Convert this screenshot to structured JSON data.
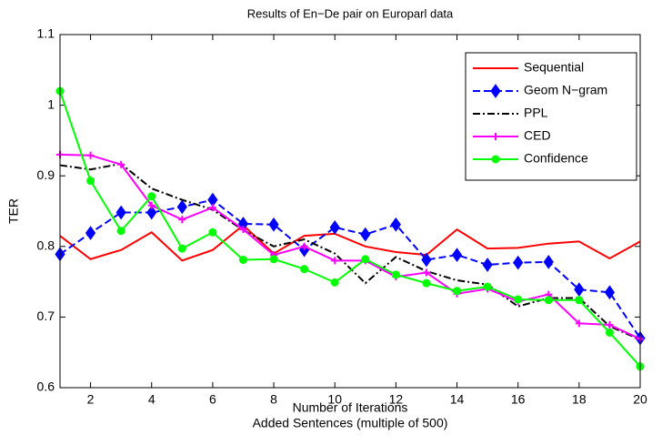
{
  "chart_data": {
    "type": "line",
    "title": "Results of En−De pair on Europarl data",
    "xlabel": [
      "Number of Iterations",
      "Added Sentences (multiple of 500)"
    ],
    "ylabel": "TER",
    "x": [
      1,
      2,
      3,
      4,
      5,
      6,
      7,
      8,
      9,
      10,
      11,
      12,
      13,
      14,
      15,
      16,
      17,
      18,
      19,
      20
    ],
    "xlim": [
      1,
      20
    ],
    "xticks": [
      2,
      4,
      6,
      8,
      10,
      12,
      14,
      16,
      18,
      20
    ],
    "ylim": [
      0.6,
      1.1
    ],
    "yticks": [
      0.6,
      0.7,
      0.8,
      0.9,
      1,
      1.1
    ],
    "grid": false,
    "legend": "northeast",
    "series": [
      {
        "name": "Sequential",
        "color": "#ff0000",
        "line_style": "solid",
        "marker": "none",
        "values": [
          0.815,
          0.782,
          0.795,
          0.82,
          0.78,
          0.795,
          0.83,
          0.79,
          0.815,
          0.818,
          0.8,
          0.792,
          0.788,
          0.824,
          0.797,
          0.798,
          0.804,
          0.807,
          0.783,
          0.807
        ]
      },
      {
        "name": "Geom N−gram",
        "color": "#0000ff",
        "line_style": "dashed",
        "marker": "diamond",
        "values": [
          0.789,
          0.819,
          0.848,
          0.848,
          0.856,
          0.866,
          0.832,
          0.831,
          0.795,
          0.827,
          0.817,
          0.831,
          0.781,
          0.788,
          0.774,
          0.777,
          0.778,
          0.739,
          0.735,
          0.67
        ]
      },
      {
        "name": "PPL",
        "color": "#000000",
        "line_style": "dashdot",
        "marker": "none",
        "values": [
          0.915,
          0.909,
          0.917,
          0.882,
          0.866,
          0.852,
          0.823,
          0.8,
          0.81,
          0.79,
          0.748,
          0.785,
          0.765,
          0.752,
          0.746,
          0.715,
          0.727,
          0.727,
          0.687,
          0.668
        ]
      },
      {
        "name": "CED",
        "color": "#ff00ff",
        "line_style": "solid",
        "marker": "plus",
        "values": [
          0.93,
          0.929,
          0.916,
          0.858,
          0.838,
          0.855,
          0.824,
          0.788,
          0.8,
          0.78,
          0.78,
          0.757,
          0.763,
          0.733,
          0.74,
          0.722,
          0.732,
          0.691,
          0.689,
          0.669
        ]
      },
      {
        "name": "Confidence",
        "color": "#00ff00",
        "line_style": "solid",
        "marker": "circle",
        "values": [
          1.02,
          0.893,
          0.822,
          0.871,
          0.797,
          0.82,
          0.781,
          0.782,
          0.768,
          0.749,
          0.782,
          0.76,
          0.748,
          0.737,
          0.743,
          0.725,
          0.724,
          0.724,
          0.678,
          0.63
        ]
      }
    ]
  }
}
